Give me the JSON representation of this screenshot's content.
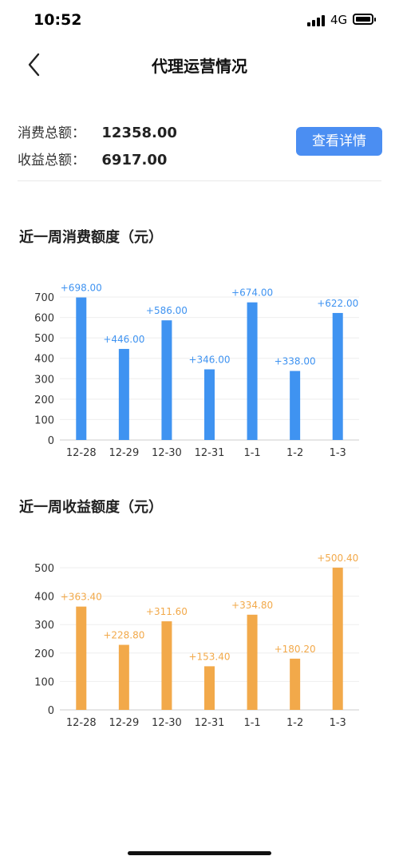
{
  "status_bar": {
    "time": "10:52",
    "network": "4G"
  },
  "nav": {
    "title": "代理运营情况"
  },
  "summary": {
    "consumption_label": "消费总额：",
    "consumption_value": "12358.00",
    "income_label": "收益总额：",
    "income_value": "6917.00",
    "details_button": "查看详情"
  },
  "sections": {
    "consumption_title": "近一周消费额度（元）",
    "income_title": "近一周收益额度（元）"
  },
  "chart_data": [
    {
      "type": "bar",
      "title": "近一周消费额度（元）",
      "categories": [
        "12-28",
        "12-29",
        "12-30",
        "12-31",
        "1-1",
        "1-2",
        "1-3"
      ],
      "values": [
        698,
        446,
        586,
        346,
        674,
        338,
        622
      ],
      "data_labels": [
        "+698.00",
        "+446.00",
        "+586.00",
        "+346.00",
        "+674.00",
        "+338.00",
        "+622.00"
      ],
      "yticks": [
        0,
        100,
        200,
        300,
        400,
        500,
        600,
        700
      ],
      "ylim": [
        0,
        700
      ],
      "color": "#3f93f1",
      "grid": true
    },
    {
      "type": "bar",
      "title": "近一周收益额度（元）",
      "categories": [
        "12-28",
        "12-29",
        "12-30",
        "12-31",
        "1-1",
        "1-2",
        "1-3"
      ],
      "values": [
        363.4,
        228.8,
        311.6,
        153.4,
        334.8,
        180.2,
        500.4
      ],
      "data_labels": [
        "+363.40",
        "+228.80",
        "+311.60",
        "+153.40",
        "+334.80",
        "+180.20",
        "+500.40"
      ],
      "yticks": [
        0,
        100,
        200,
        300,
        400,
        500
      ],
      "ylim": [
        0,
        500
      ],
      "color": "#f2a94a",
      "grid": true
    }
  ]
}
